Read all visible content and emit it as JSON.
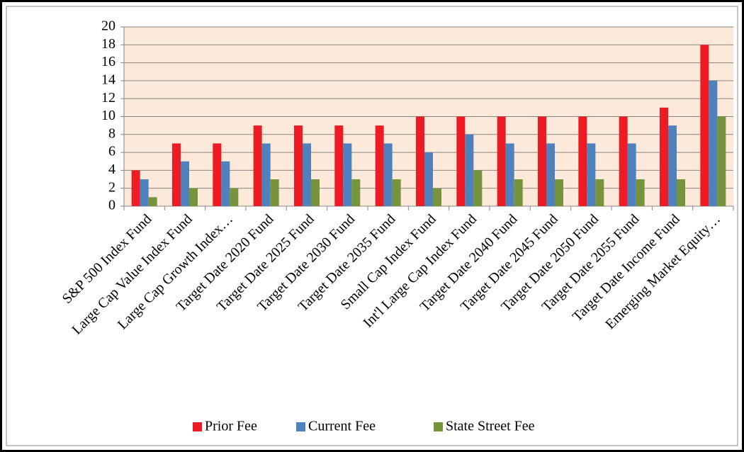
{
  "chart_data": {
    "type": "bar",
    "categories": [
      "S&P 500 Index Fund",
      "Large Cap Value Index Fund",
      "Large Cap Growth Index…",
      "Target Date 2020 Fund",
      "Target Date 2025 Fund",
      "Target Date 2030 Fund",
      "Target Date 2035 Fund",
      "Small Cap Index Fund",
      "Int'l Large Cap Index Fund",
      "Target Date 2040 Fund",
      "Target Date 2045 Fund",
      "Target Date 2050 Fund",
      "Target Date 2055 Fund",
      "Target Date Income Fund",
      "Emerging Market Equity…"
    ],
    "series": [
      {
        "name": "Prior Fee",
        "color": "#ed1c24",
        "values": [
          4,
          7,
          7,
          9,
          9,
          9,
          9,
          10,
          10,
          10,
          10,
          10,
          10,
          11,
          18
        ]
      },
      {
        "name": "Current Fee",
        "color": "#4f81bd",
        "values": [
          3,
          5,
          5,
          7,
          7,
          7,
          7,
          6,
          8,
          7,
          7,
          7,
          7,
          9,
          14
        ]
      },
      {
        "name": "State Street Fee",
        "color": "#77933c",
        "values": [
          1,
          2,
          2,
          3,
          3,
          3,
          3,
          2,
          4,
          3,
          3,
          3,
          3,
          3,
          10
        ]
      }
    ],
    "ylim": [
      0,
      20
    ],
    "yticks": [
      0,
      2,
      4,
      6,
      8,
      10,
      12,
      14,
      16,
      18,
      20
    ],
    "grid": true,
    "legend": "bottom"
  }
}
